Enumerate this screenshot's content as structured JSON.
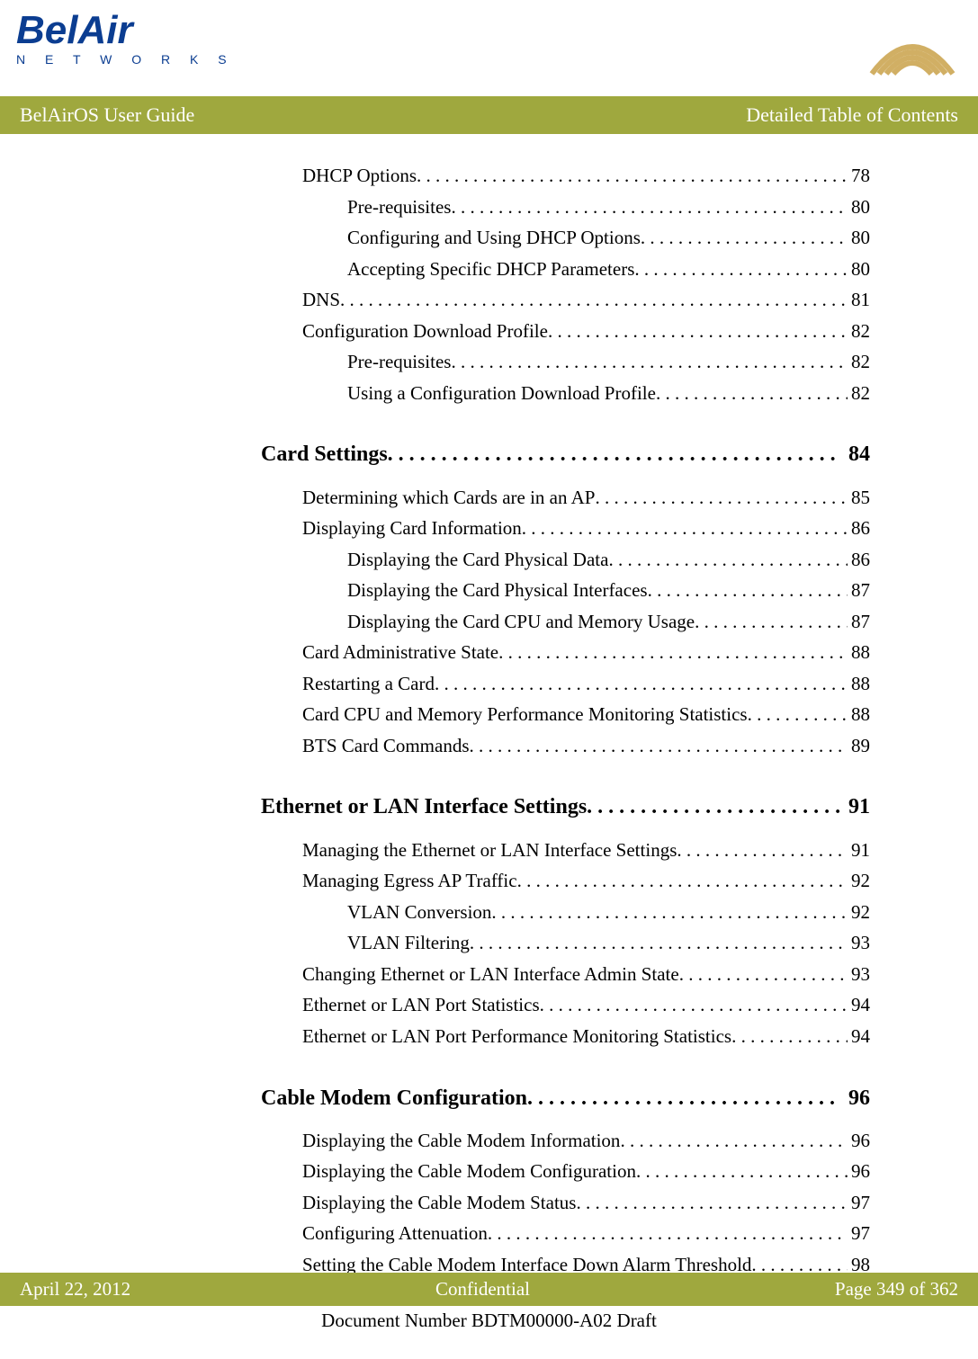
{
  "logo": {
    "main": "BelAir",
    "sub": "N E T W O R K S"
  },
  "titlebar": {
    "left": "BelAirOS User Guide",
    "right": "Detailed Table of Contents"
  },
  "sections": [
    {
      "heading": null,
      "items": [
        {
          "level": 1,
          "label": "DHCP Options",
          "page": "78"
        },
        {
          "level": 2,
          "label": "Pre-requisites",
          "page": "80"
        },
        {
          "level": 2,
          "label": "Configuring and Using DHCP Options",
          "page": "80"
        },
        {
          "level": 2,
          "label": "Accepting Specific DHCP Parameters",
          "page": "80"
        },
        {
          "level": 1,
          "label": "DNS",
          "page": "81"
        },
        {
          "level": 1,
          "label": "Configuration Download Profile",
          "page": "82"
        },
        {
          "level": 2,
          "label": "Pre-requisites",
          "page": "82"
        },
        {
          "level": 2,
          "label": "Using a Configuration Download Profile",
          "page": "82"
        }
      ]
    },
    {
      "heading": {
        "label": "Card Settings",
        "page": "84"
      },
      "items": [
        {
          "level": 1,
          "label": "Determining which Cards are in an AP",
          "page": "85"
        },
        {
          "level": 1,
          "label": "Displaying Card Information",
          "page": "86"
        },
        {
          "level": 2,
          "label": "Displaying the Card Physical Data",
          "page": "86"
        },
        {
          "level": 2,
          "label": "Displaying the Card Physical Interfaces",
          "page": "87"
        },
        {
          "level": 2,
          "label": "Displaying the Card CPU and Memory Usage",
          "page": "87"
        },
        {
          "level": 1,
          "label": "Card Administrative State",
          "page": "88"
        },
        {
          "level": 1,
          "label": "Restarting a Card",
          "page": "88"
        },
        {
          "level": 1,
          "label": "Card CPU and Memory Performance Monitoring Statistics",
          "page": "88"
        },
        {
          "level": 1,
          "label": "BTS Card Commands",
          "page": "89"
        }
      ]
    },
    {
      "heading": {
        "label": "Ethernet or LAN Interface Settings",
        "page": "91"
      },
      "items": [
        {
          "level": 1,
          "label": "Managing the Ethernet or LAN Interface Settings",
          "page": "91"
        },
        {
          "level": 1,
          "label": "Managing Egress AP Traffic",
          "page": "92"
        },
        {
          "level": 2,
          "label": "VLAN Conversion",
          "page": "92"
        },
        {
          "level": 2,
          "label": "VLAN Filtering",
          "page": "93"
        },
        {
          "level": 1,
          "label": "Changing Ethernet or LAN Interface Admin State",
          "page": "93"
        },
        {
          "level": 1,
          "label": "Ethernet or LAN Port Statistics",
          "page": "94"
        },
        {
          "level": 1,
          "label": "Ethernet or LAN Port Performance Monitoring Statistics",
          "page": "94"
        }
      ]
    },
    {
      "heading": {
        "label": "Cable Modem Configuration",
        "page": "96"
      },
      "items": [
        {
          "level": 1,
          "label": "Displaying the Cable Modem Information",
          "page": "96"
        },
        {
          "level": 1,
          "label": "Displaying the Cable Modem Configuration",
          "page": "96"
        },
        {
          "level": 1,
          "label": "Displaying the Cable Modem Status",
          "page": "97"
        },
        {
          "level": 1,
          "label": "Configuring Attenuation",
          "page": "97"
        },
        {
          "level": 1,
          "label": "Setting the Cable Modem Interface Down Alarm Threshold",
          "page": "98"
        }
      ]
    }
  ],
  "footer": {
    "date": "April 22, 2012",
    "center": "Confidential",
    "pageinfo": "Page 349 of 362",
    "docnum": "Document Number BDTM00000-A02 Draft"
  },
  "colors": {
    "bar": "#9fa83e",
    "logo": "#0b3d91",
    "side_logo": "#c9a24a"
  }
}
